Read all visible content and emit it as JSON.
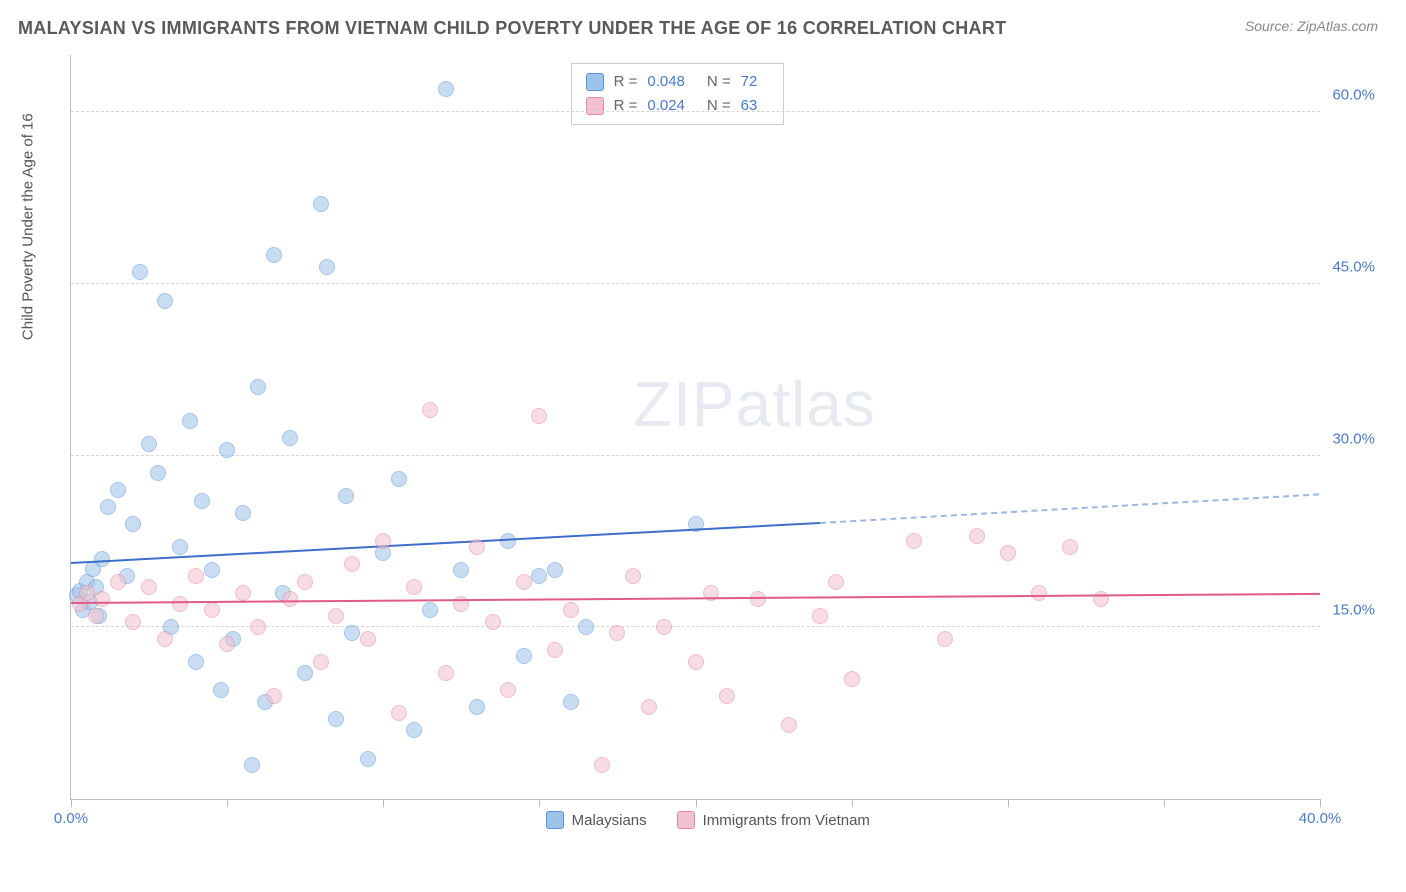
{
  "title": "MALAYSIAN VS IMMIGRANTS FROM VIETNAM CHILD POVERTY UNDER THE AGE OF 16 CORRELATION CHART",
  "source": "Source: ZipAtlas.com",
  "watermark": {
    "bold": "ZIP",
    "light": "atlas"
  },
  "chart": {
    "type": "scatter",
    "xlim": [
      0,
      40
    ],
    "ylim": [
      0,
      65
    ],
    "ylabel": "Child Poverty Under the Age of 16",
    "xtick_labels": {
      "0": "0.0%",
      "40": "40.0%"
    },
    "xtick_positions": [
      0,
      5,
      10,
      15,
      20,
      25,
      30,
      35,
      40
    ],
    "ytick_positions": [
      15,
      30,
      45,
      60
    ],
    "ytick_labels": {
      "15": "15.0%",
      "30": "30.0%",
      "45": "45.0%",
      "60": "60.0%"
    },
    "grid_color": "#d5d5d5",
    "axis_color": "#bbbbbb",
    "background_color": "#ffffff",
    "marker_radius": 8,
    "marker_opacity": 0.55,
    "series": [
      {
        "name": "Malaysians",
        "fill_color": "#9ec3e8",
        "stroke_color": "#5a94d6",
        "trend_color": "#3d6fc9",
        "R": "0.048",
        "N": "72",
        "trend": {
          "x1": 0,
          "y1": 20.5,
          "x2": 24,
          "y2": 24.0,
          "x2_dash": 40,
          "y2_dash": 26.5
        },
        "points": [
          [
            0.2,
            17.8
          ],
          [
            0.3,
            18.2
          ],
          [
            0.4,
            16.5
          ],
          [
            0.5,
            19.0
          ],
          [
            0.6,
            17.2
          ],
          [
            0.7,
            20.1
          ],
          [
            0.8,
            18.5
          ],
          [
            0.9,
            16.0
          ],
          [
            1.0,
            21.0
          ],
          [
            1.2,
            25.5
          ],
          [
            1.5,
            27.0
          ],
          [
            1.8,
            19.5
          ],
          [
            2.0,
            24.0
          ],
          [
            2.2,
            46.0
          ],
          [
            2.5,
            31.0
          ],
          [
            2.8,
            28.5
          ],
          [
            3.0,
            43.5
          ],
          [
            3.2,
            15.0
          ],
          [
            3.5,
            22.0
          ],
          [
            3.8,
            33.0
          ],
          [
            4.0,
            12.0
          ],
          [
            4.2,
            26.0
          ],
          [
            4.5,
            20.0
          ],
          [
            4.8,
            9.5
          ],
          [
            5.0,
            30.5
          ],
          [
            5.2,
            14.0
          ],
          [
            5.5,
            25.0
          ],
          [
            5.8,
            3.0
          ],
          [
            6.0,
            36.0
          ],
          [
            6.2,
            8.5
          ],
          [
            6.5,
            47.5
          ],
          [
            6.8,
            18.0
          ],
          [
            7.0,
            31.5
          ],
          [
            7.5,
            11.0
          ],
          [
            8.0,
            52.0
          ],
          [
            8.2,
            46.5
          ],
          [
            8.5,
            7.0
          ],
          [
            8.8,
            26.5
          ],
          [
            9.0,
            14.5
          ],
          [
            9.5,
            3.5
          ],
          [
            10.0,
            21.5
          ],
          [
            10.5,
            28.0
          ],
          [
            11.0,
            6.0
          ],
          [
            11.5,
            16.5
          ],
          [
            12.0,
            62.0
          ],
          [
            12.5,
            20.0
          ],
          [
            13.0,
            8.0
          ],
          [
            14.0,
            22.5
          ],
          [
            14.5,
            12.5
          ],
          [
            15.0,
            19.5
          ],
          [
            15.5,
            20.0
          ],
          [
            16.0,
            8.5
          ],
          [
            16.5,
            15.0
          ],
          [
            20.0,
            24.0
          ]
        ]
      },
      {
        "name": "Immigrants from Vietnam",
        "fill_color": "#f3c1cd",
        "stroke_color": "#e08aa5",
        "trend_color": "#e05a8a",
        "R": "0.024",
        "N": "63",
        "trend": {
          "x1": 0,
          "y1": 17.0,
          "x2": 40,
          "y2": 17.8
        },
        "points": [
          [
            0.3,
            17.0
          ],
          [
            0.5,
            18.0
          ],
          [
            0.8,
            16.0
          ],
          [
            1.0,
            17.5
          ],
          [
            1.5,
            19.0
          ],
          [
            2.0,
            15.5
          ],
          [
            2.5,
            18.5
          ],
          [
            3.0,
            14.0
          ],
          [
            3.5,
            17.0
          ],
          [
            4.0,
            19.5
          ],
          [
            4.5,
            16.5
          ],
          [
            5.0,
            13.5
          ],
          [
            5.5,
            18.0
          ],
          [
            6.0,
            15.0
          ],
          [
            6.5,
            9.0
          ],
          [
            7.0,
            17.5
          ],
          [
            7.5,
            19.0
          ],
          [
            8.0,
            12.0
          ],
          [
            8.5,
            16.0
          ],
          [
            9.0,
            20.5
          ],
          [
            9.5,
            14.0
          ],
          [
            10.0,
            22.5
          ],
          [
            10.5,
            7.5
          ],
          [
            11.0,
            18.5
          ],
          [
            11.5,
            34.0
          ],
          [
            12.0,
            11.0
          ],
          [
            12.5,
            17.0
          ],
          [
            13.0,
            22.0
          ],
          [
            13.5,
            15.5
          ],
          [
            14.0,
            9.5
          ],
          [
            14.5,
            19.0
          ],
          [
            15.0,
            33.5
          ],
          [
            15.5,
            13.0
          ],
          [
            16.0,
            16.5
          ],
          [
            17.0,
            3.0
          ],
          [
            17.5,
            14.5
          ],
          [
            18.0,
            19.5
          ],
          [
            18.5,
            8.0
          ],
          [
            19.0,
            15.0
          ],
          [
            20.0,
            12.0
          ],
          [
            20.5,
            18.0
          ],
          [
            21.0,
            9.0
          ],
          [
            22.0,
            17.5
          ],
          [
            23.0,
            6.5
          ],
          [
            24.0,
            16.0
          ],
          [
            24.5,
            19.0
          ],
          [
            25.0,
            10.5
          ],
          [
            27.0,
            22.5
          ],
          [
            28.0,
            14.0
          ],
          [
            29.0,
            23.0
          ],
          [
            30.0,
            21.5
          ],
          [
            31.0,
            18.0
          ],
          [
            32.0,
            22.0
          ],
          [
            33.0,
            17.5
          ]
        ]
      }
    ]
  }
}
